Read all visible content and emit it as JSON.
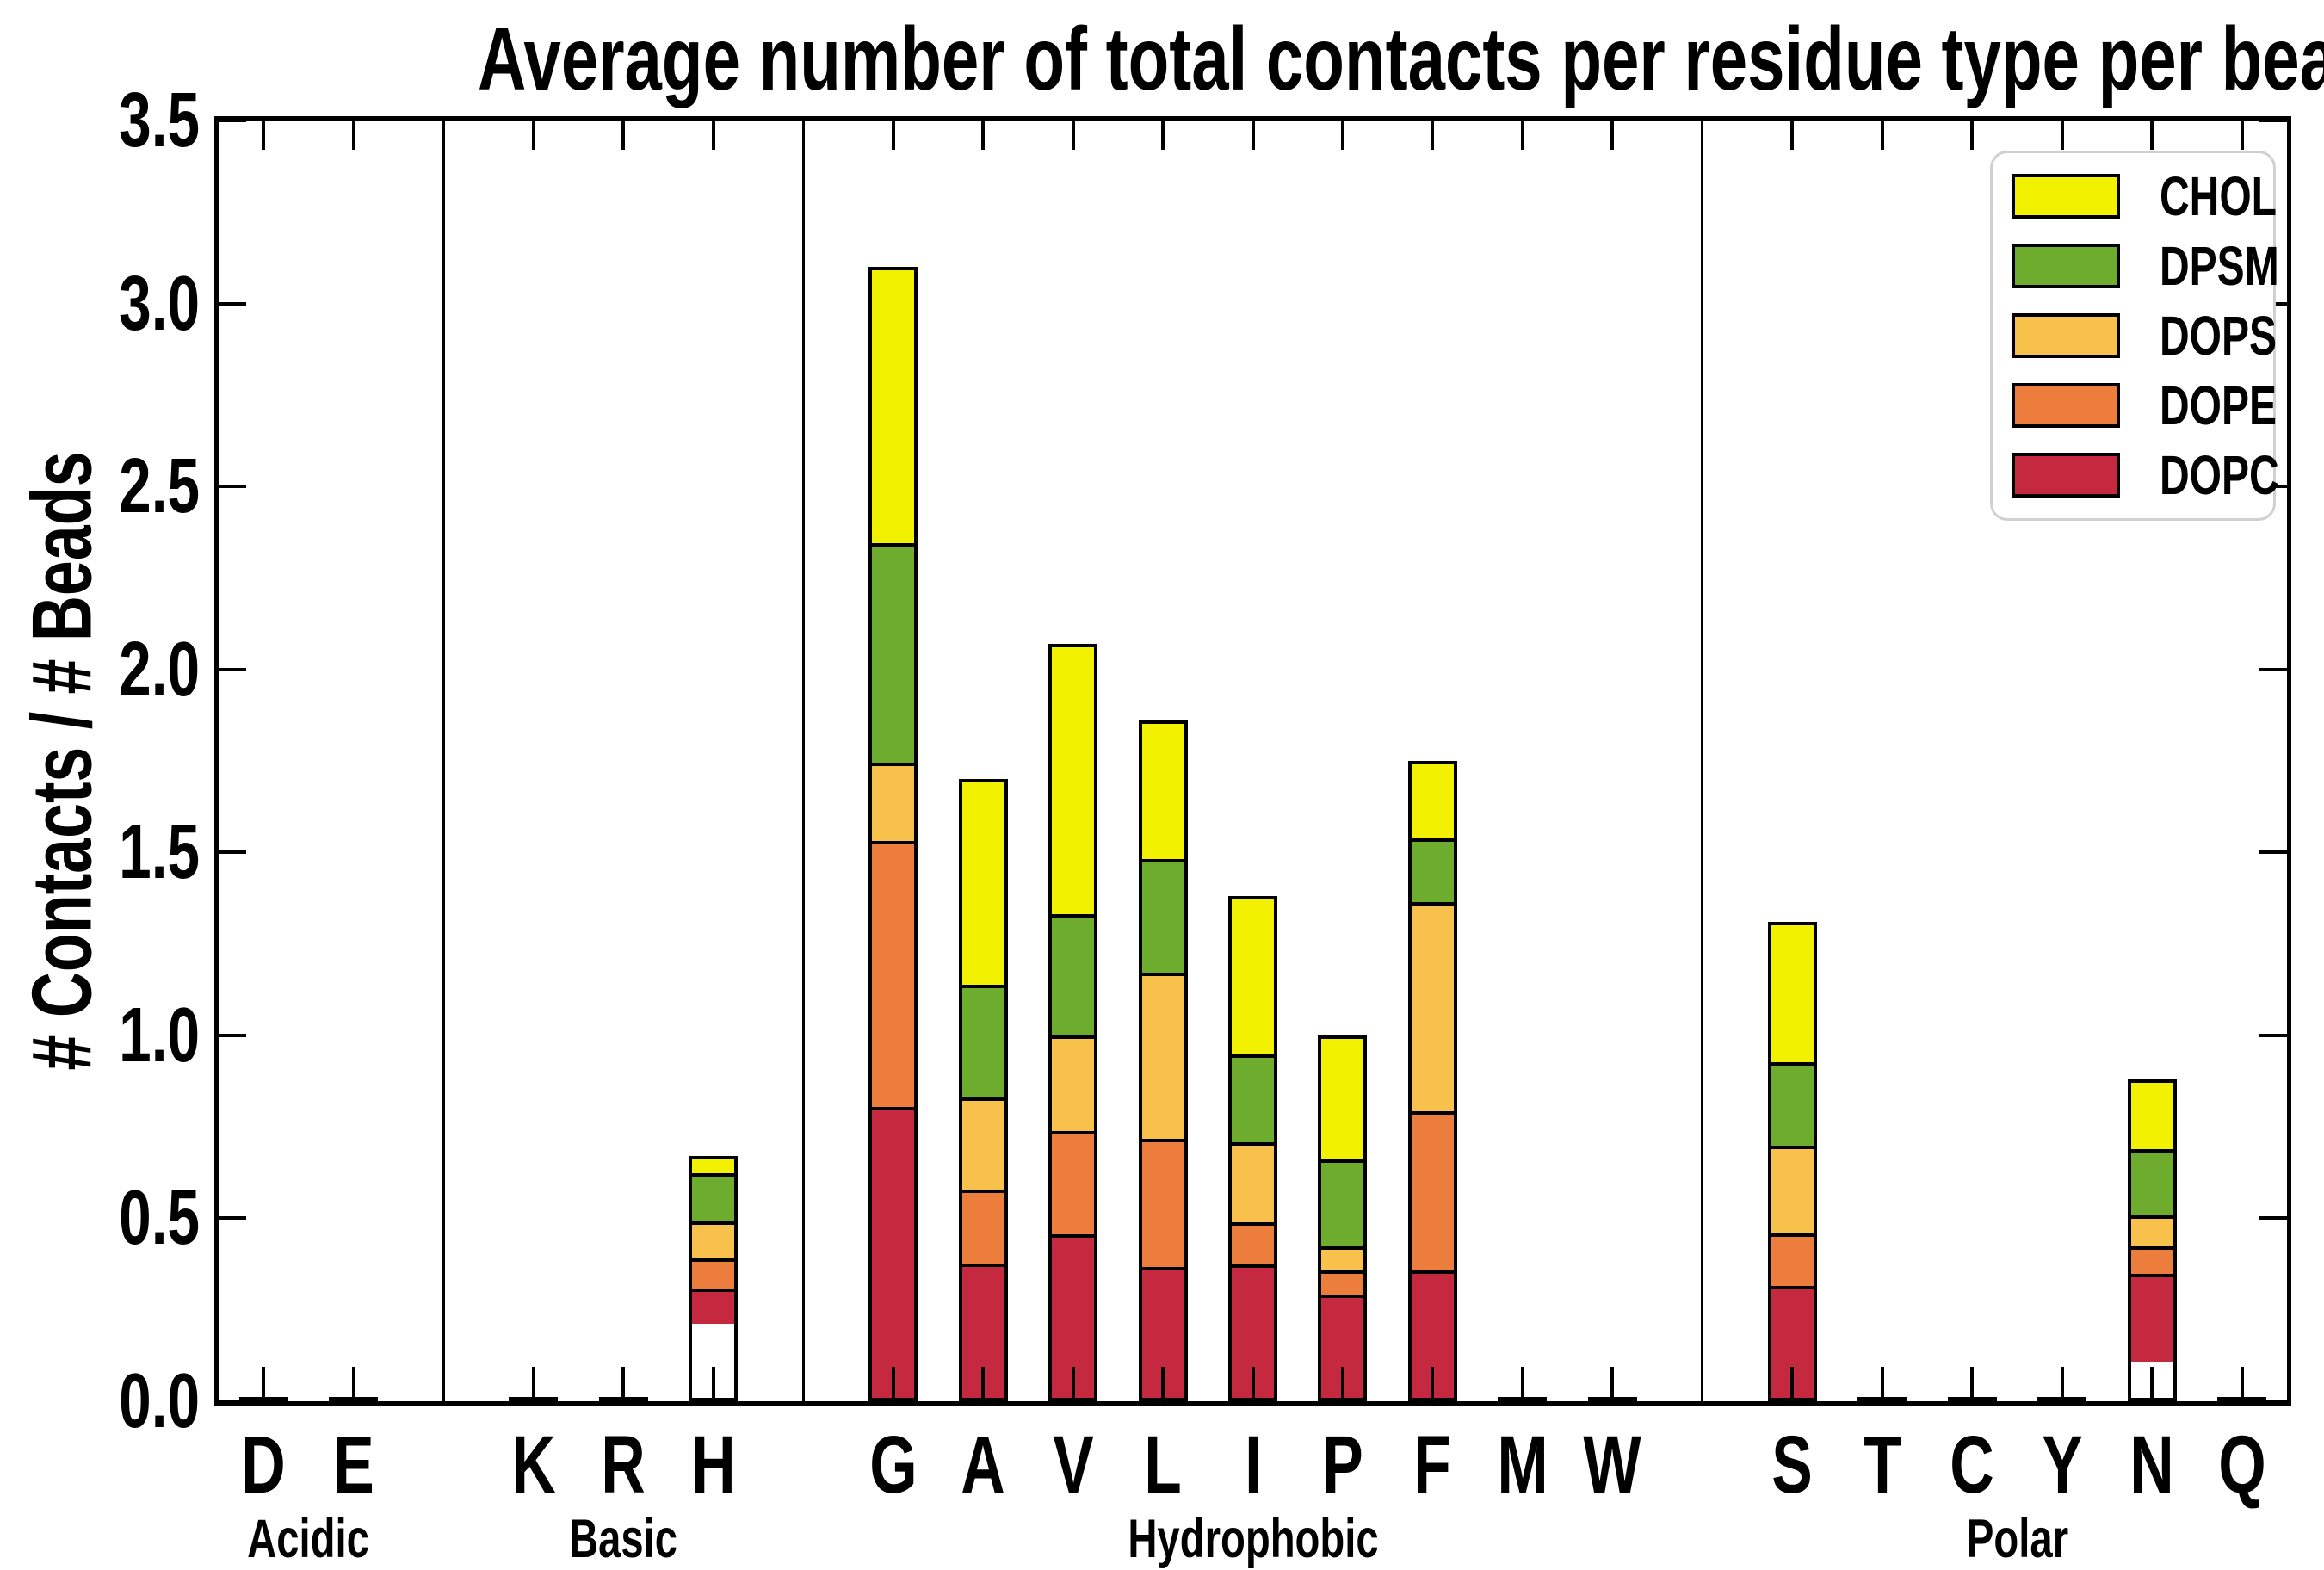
{
  "chart_data": {
    "type": "bar",
    "stacked": true,
    "title": "Average number of total contacts per residue type per bead",
    "ylabel": "# Contacts / # Beads",
    "xlabel": "",
    "ylim": [
      0,
      3.5
    ],
    "yticks": [
      "0.0",
      "0.5",
      "1.0",
      "1.5",
      "2.0",
      "2.5",
      "3.0",
      "3.5"
    ],
    "grid": false,
    "legend_position": "upper right",
    "legend": [
      {
        "label": "CHOL",
        "color": "#f2f200"
      },
      {
        "label": "DPSM",
        "color": "#6dac2d"
      },
      {
        "label": "DOPS",
        "color": "#f7c14b"
      },
      {
        "label": "DOPE",
        "color": "#ed7d3c"
      },
      {
        "label": "DOPC",
        "color": "#c5293f"
      }
    ],
    "series_order_bottom_to_top": [
      "DOPC",
      "DOPE",
      "DOPS",
      "DPSM",
      "CHOL"
    ],
    "colors": {
      "CHOL": "#f2f200",
      "DPSM": "#6dac2d",
      "DOPS": "#f7c14b",
      "DOPE": "#ed7d3c",
      "DOPC": "#c5293f"
    },
    "groups": [
      {
        "name": "Acidic",
        "residues": [
          "D",
          "E"
        ]
      },
      {
        "name": "Basic",
        "residues": [
          "K",
          "R",
          "H"
        ]
      },
      {
        "name": "Hydrophobic",
        "residues": [
          "G",
          "A",
          "V",
          "L",
          "I",
          "P",
          "F",
          "M",
          "W"
        ]
      },
      {
        "name": "Polar",
        "residues": [
          "S",
          "T",
          "C",
          "Y",
          "N",
          "Q"
        ]
      }
    ],
    "values": {
      "D": {
        "DOPC": 0,
        "DOPE": 0,
        "DOPS": 0,
        "DPSM": 0,
        "CHOL": 0
      },
      "E": {
        "DOPC": 0,
        "DOPE": 0,
        "DOPS": 0,
        "DPSM": 0,
        "CHOL": 0
      },
      "K": {
        "DOPC": 0,
        "DOPE": 0,
        "DOPS": 0,
        "DPSM": 0,
        "CHOL": 0
      },
      "R": {
        "DOPC": 0,
        "DOPE": 0,
        "DOPS": 0,
        "DPSM": 0,
        "CHOL": 0
      },
      "H": {
        "DOPC": 0.14,
        "DOPE": 0.12,
        "DOPS": 0.15,
        "DPSM": 0.2,
        "CHOL": 0.06
      },
      "G": {
        "DOPC": 0.8,
        "DOPE": 0.73,
        "DOPS": 0.21,
        "DPSM": 0.6,
        "CHOL": 0.76
      },
      "A": {
        "DOPC": 0.37,
        "DOPE": 0.2,
        "DOPS": 0.25,
        "DPSM": 0.31,
        "CHOL": 0.57
      },
      "V": {
        "DOPC": 0.45,
        "DOPE": 0.28,
        "DOPS": 0.26,
        "DPSM": 0.33,
        "CHOL": 0.75
      },
      "L": {
        "DOPC": 0.36,
        "DOPE": 0.35,
        "DOPS": 0.46,
        "DPSM": 0.31,
        "CHOL": 0.38
      },
      "I": {
        "DOPC": 0.37,
        "DOPE": 0.11,
        "DOPS": 0.22,
        "DPSM": 0.24,
        "CHOL": 0.44
      },
      "P": {
        "DOPC": 0.29,
        "DOPE": 0.06,
        "DOPS": 0.06,
        "DPSM": 0.24,
        "CHOL": 0.35
      },
      "F": {
        "DOPC": 0.35,
        "DOPE": 0.44,
        "DOPS": 0.58,
        "DPSM": 0.17,
        "CHOL": 0.21
      },
      "M": {
        "DOPC": 0,
        "DOPE": 0,
        "DOPS": 0,
        "DPSM": 0,
        "CHOL": 0
      },
      "W": {
        "DOPC": 0,
        "DOPE": 0,
        "DOPS": 0,
        "DPSM": 0,
        "CHOL": 0
      },
      "S": {
        "DOPC": 0.31,
        "DOPE": 0.14,
        "DOPS": 0.24,
        "DPSM": 0.23,
        "CHOL": 0.39
      },
      "T": {
        "DOPC": 0,
        "DOPE": 0,
        "DOPS": 0,
        "DPSM": 0,
        "CHOL": 0
      },
      "C": {
        "DOPC": 0,
        "DOPE": 0,
        "DOPS": 0,
        "DPSM": 0,
        "CHOL": 0
      },
      "Y": {
        "DOPC": 0,
        "DOPE": 0,
        "DOPS": 0,
        "DPSM": 0,
        "CHOL": 0
      },
      "N": {
        "DOPC": 0.28,
        "DOPE": 0.08,
        "DOPS": 0.09,
        "DPSM": 0.21,
        "CHOL": 0.22
      },
      "Q": {
        "DOPC": 0,
        "DOPE": 0,
        "DOPS": 0,
        "DPSM": 0,
        "CHOL": 0
      }
    },
    "near_zero_outline": [
      "D",
      "E",
      "K",
      "R",
      "M",
      "W",
      "T",
      "C",
      "Y",
      "Q"
    ]
  }
}
